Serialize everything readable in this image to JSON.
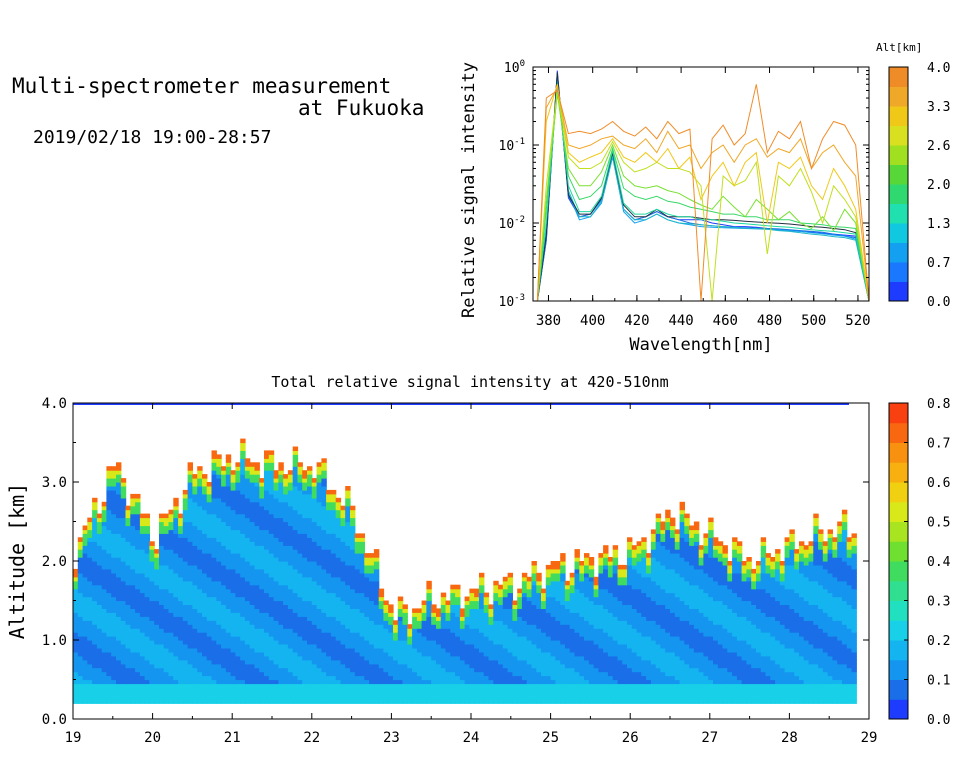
{
  "header": {
    "title_line1": "Multi-spectrometer measurement",
    "title_line2": "at Fukuoka",
    "datetime": "2019/02/18 19:00-28:57"
  },
  "chart_data": [
    {
      "type": "line",
      "title": "",
      "xlabel": "Wavelength[nm]",
      "ylabel": "Relative signal intensity",
      "xlim": [
        373,
        525
      ],
      "ylim": [
        0.001,
        1
      ],
      "yscale": "log",
      "x_ticks": [
        "380",
        "400",
        "420",
        "440",
        "460",
        "480",
        "500",
        "520"
      ],
      "y_ticks": [
        "10^-3",
        "10^-2",
        "10^-1",
        "10^0"
      ],
      "colorbar": {
        "title": "Alt[km]",
        "tick_labels": [
          "0.0",
          "0.7",
          "1.3",
          "2.0",
          "2.6",
          "3.3",
          "4.0"
        ],
        "colors": [
          "#1e3cff",
          "#1a78ff",
          "#14a0f0",
          "#10c8e0",
          "#20e0b0",
          "#30d870",
          "#58d838",
          "#a0e020",
          "#d8e020",
          "#f0c818",
          "#f0a828",
          "#f08c28"
        ]
      },
      "x": [
        375,
        379,
        384,
        389,
        394,
        399,
        404,
        409,
        414,
        419,
        424,
        429,
        434,
        439,
        444,
        449,
        454,
        459,
        464,
        469,
        474,
        479,
        484,
        489,
        494,
        499,
        504,
        509,
        514,
        519,
        525
      ],
      "series": [
        {
          "color": "#1e3cff",
          "values": [
            0.001,
            0.006,
            0.9,
            0.021,
            0.012,
            0.013,
            0.02,
            0.08,
            0.015,
            0.011,
            0.012,
            0.014,
            0.012,
            0.011,
            0.011,
            0.011,
            0.01,
            0.0095,
            0.009,
            0.009,
            0.0088,
            0.0085,
            0.0082,
            0.008,
            0.0078,
            0.0076,
            0.0074,
            0.0072,
            0.007,
            0.0068,
            0.001
          ]
        },
        {
          "color": "#1a6ee0",
          "values": [
            0.001,
            0.006,
            0.85,
            0.022,
            0.012,
            0.013,
            0.02,
            0.075,
            0.015,
            0.011,
            0.012,
            0.014,
            0.012,
            0.011,
            0.01,
            0.0095,
            0.0092,
            0.009,
            0.0088,
            0.0087,
            0.0086,
            0.0085,
            0.0084,
            0.0082,
            0.008,
            0.0078,
            0.0076,
            0.0072,
            0.0068,
            0.0065,
            0.001
          ]
        },
        {
          "color": "#14a0f0",
          "values": [
            0.001,
            0.007,
            0.8,
            0.024,
            0.011,
            0.012,
            0.018,
            0.07,
            0.014,
            0.01,
            0.011,
            0.013,
            0.011,
            0.01,
            0.0095,
            0.009,
            0.0088,
            0.0087,
            0.0086,
            0.0085,
            0.0084,
            0.0083,
            0.0082,
            0.008,
            0.0078,
            0.0075,
            0.0073,
            0.007,
            0.0068,
            0.0062,
            0.001
          ]
        },
        {
          "color": "#20b8c8",
          "values": [
            0.001,
            0.008,
            0.7,
            0.026,
            0.012,
            0.012,
            0.019,
            0.072,
            0.015,
            0.011,
            0.011,
            0.013,
            0.011,
            0.01,
            0.0098,
            0.0095,
            0.0092,
            0.009,
            0.0088,
            0.0086,
            0.0085,
            0.0083,
            0.008,
            0.0078,
            0.0075,
            0.0072,
            0.007,
            0.0067,
            0.0065,
            0.006,
            0.001
          ]
        },
        {
          "color": "#223040",
          "values": [
            0.001,
            0.007,
            0.85,
            0.023,
            0.013,
            0.013,
            0.021,
            0.08,
            0.017,
            0.012,
            0.012,
            0.015,
            0.012,
            0.012,
            0.012,
            0.0115,
            0.011,
            0.011,
            0.0108,
            0.0105,
            0.0103,
            0.0101,
            0.0099,
            0.0097,
            0.0094,
            0.009,
            0.0088,
            0.0085,
            0.0082,
            0.0075,
            0.001
          ]
        },
        {
          "color": "#20d8a0",
          "values": [
            0.001,
            0.01,
            0.6,
            0.03,
            0.014,
            0.014,
            0.022,
            0.085,
            0.018,
            0.013,
            0.013,
            0.015,
            0.013,
            0.012,
            0.012,
            0.011,
            0.011,
            0.0105,
            0.01,
            0.0098,
            0.0095,
            0.0092,
            0.009,
            0.0088,
            0.0085,
            0.0082,
            0.008,
            0.0078,
            0.0075,
            0.0072,
            0.001
          ]
        },
        {
          "color": "#38d868",
          "values": [
            0.001,
            0.015,
            0.5,
            0.04,
            0.02,
            0.022,
            0.03,
            0.09,
            0.028,
            0.022,
            0.02,
            0.022,
            0.019,
            0.018,
            0.016,
            0.015,
            0.014,
            0.013,
            0.013,
            0.012,
            0.012,
            0.011,
            0.011,
            0.011,
            0.01,
            0.0098,
            0.0095,
            0.009,
            0.0088,
            0.0085,
            0.001
          ]
        },
        {
          "color": "#78e030",
          "values": [
            0.001,
            0.02,
            0.45,
            0.05,
            0.03,
            0.03,
            0.045,
            0.1,
            0.04,
            0.03,
            0.028,
            0.03,
            0.026,
            0.024,
            0.02,
            0.017,
            0.015,
            0.022,
            0.016,
            0.012,
            0.02,
            0.015,
            0.011,
            0.014,
            0.01,
            0.0085,
            0.012,
            0.008,
            0.015,
            0.01,
            0.001
          ]
        },
        {
          "color": "#c0e020",
          "values": [
            0.001,
            0.03,
            0.5,
            0.07,
            0.05,
            0.05,
            0.06,
            0.11,
            0.06,
            0.045,
            0.05,
            0.06,
            0.05,
            0.05,
            0.045,
            0.03,
            0.001,
            0.04,
            0.03,
            0.035,
            0.06,
            0.004,
            0.04,
            0.03,
            0.05,
            0.025,
            0.01,
            0.03,
            0.02,
            0.012,
            0.001
          ]
        },
        {
          "color": "#f0c818",
          "values": [
            0.001,
            0.2,
            0.6,
            0.08,
            0.06,
            0.07,
            0.08,
            0.12,
            0.07,
            0.06,
            0.08,
            0.06,
            0.09,
            0.05,
            0.07,
            0.02,
            0.04,
            0.06,
            0.03,
            0.06,
            0.08,
            0.01,
            0.06,
            0.05,
            0.07,
            0.03,
            0.02,
            0.05,
            0.03,
            0.015,
            0.001
          ]
        },
        {
          "color": "#f0a828",
          "values": [
            0.001,
            0.3,
            0.55,
            0.1,
            0.09,
            0.1,
            0.12,
            0.13,
            0.1,
            0.09,
            0.12,
            0.08,
            0.15,
            0.09,
            0.1,
            0.05,
            0.08,
            0.1,
            0.06,
            0.1,
            0.12,
            0.07,
            0.09,
            0.08,
            0.12,
            0.05,
            0.08,
            0.1,
            0.06,
            0.04,
            0.001
          ]
        },
        {
          "color": "#f08c28",
          "values": [
            0.001,
            0.4,
            0.5,
            0.14,
            0.15,
            0.14,
            0.16,
            0.2,
            0.15,
            0.13,
            0.17,
            0.12,
            0.2,
            0.14,
            0.16,
            0.001,
            0.12,
            0.18,
            0.1,
            0.14,
            0.6,
            0.08,
            0.15,
            0.12,
            0.2,
            0.05,
            0.12,
            0.2,
            0.18,
            0.1,
            0.001
          ]
        }
      ]
    },
    {
      "type": "heatmap",
      "title": "Total relative signal intensity at 420-510nm",
      "xlabel": "",
      "ylabel": "Altitude [km]",
      "xlim": [
        19,
        29
      ],
      "ylim": [
        0,
        4
      ],
      "x_ticks": [
        "19",
        "20",
        "21",
        "22",
        "23",
        "24",
        "25",
        "26",
        "27",
        "28",
        "29"
      ],
      "y_ticks": [
        "0.0",
        "1.0",
        "2.0",
        "3.0",
        "4.0"
      ],
      "x_columns": [
        19.0,
        19.5,
        20.0,
        20.5,
        21.0,
        21.5,
        22.0,
        22.5,
        23.0,
        23.5,
        24.0,
        24.5,
        25.0,
        25.5,
        26.0,
        26.5,
        27.0,
        27.5,
        28.0,
        28.5
      ],
      "cloud_top_km": [
        2.1,
        3.2,
        2.3,
        3.1,
        3.3,
        3.2,
        3.2,
        2.6,
        1.3,
        1.5,
        1.6,
        1.7,
        1.9,
        2.0,
        2.1,
        2.6,
        2.3,
        2.0,
        2.2,
        2.4
      ],
      "colorbar": {
        "tick_labels": [
          "0.0",
          "0.1",
          "0.2",
          "0.3",
          "0.4",
          "0.5",
          "0.6",
          "0.7",
          "0.8"
        ],
        "colors": [
          "#1e3cff",
          "#1a6ee8",
          "#1496f0",
          "#14b4f0",
          "#18d0e8",
          "#20e0c0",
          "#30e090",
          "#40dc60",
          "#70e030",
          "#a8e420",
          "#d8e818",
          "#f0d010",
          "#f8b010",
          "#f89010",
          "#f86810",
          "#f84010"
        ]
      }
    }
  ]
}
